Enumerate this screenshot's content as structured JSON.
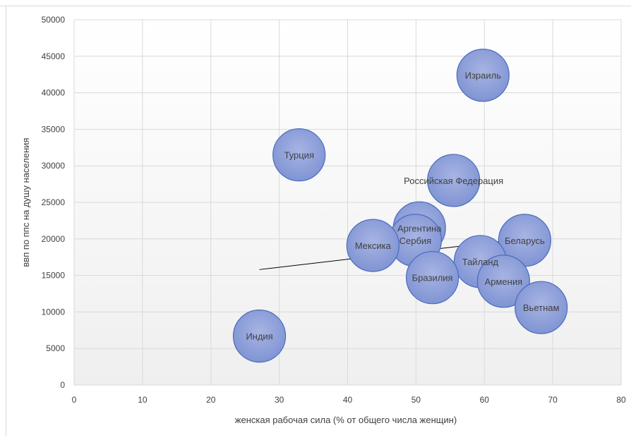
{
  "chart_data": {
    "type": "scatter",
    "title": "",
    "xlabel": "женская рабочая сила (% от общего числа женщин)",
    "ylabel": "ввп по ппс на душу населения",
    "xlim": [
      0,
      80
    ],
    "ylim": [
      0,
      50000
    ],
    "x_ticks": [
      "0",
      "10",
      "20",
      "30",
      "40",
      "50",
      "60",
      "70",
      "80"
    ],
    "y_ticks": [
      "0",
      "5000",
      "10000",
      "15000",
      "20000",
      "25000",
      "30000",
      "35000",
      "40000",
      "45000",
      "50000"
    ],
    "grid": true,
    "legend": "none",
    "bubble_color": "#8497d6",
    "bubble_edge_color": "#4a6bbd",
    "points": [
      {
        "label": "Израиль",
        "x": 59.8,
        "y": 42400
      },
      {
        "label": "Турция",
        "x": 32.9,
        "y": 31500
      },
      {
        "label": "Российская Федерация",
        "x": 55.5,
        "y": 28000
      },
      {
        "label": "Аргентина",
        "x": 50.5,
        "y": 21500
      },
      {
        "label": "Сербия",
        "x": 49.9,
        "y": 19800
      },
      {
        "label": "Мексика",
        "x": 43.7,
        "y": 19100
      },
      {
        "label": "Беларусь",
        "x": 65.9,
        "y": 19800
      },
      {
        "label": "Тайланд",
        "x": 59.4,
        "y": 16900
      },
      {
        "label": "Бразилия",
        "x": 52.4,
        "y": 14700
      },
      {
        "label": "Армения",
        "x": 62.8,
        "y": 14200
      },
      {
        "label": "Вьетнам",
        "x": 68.3,
        "y": 10600
      },
      {
        "label": "Индия",
        "x": 27.1,
        "y": 6700
      }
    ],
    "trendline": {
      "x": [
        27.1,
        68.3
      ],
      "y": [
        15800,
        20300
      ]
    }
  }
}
